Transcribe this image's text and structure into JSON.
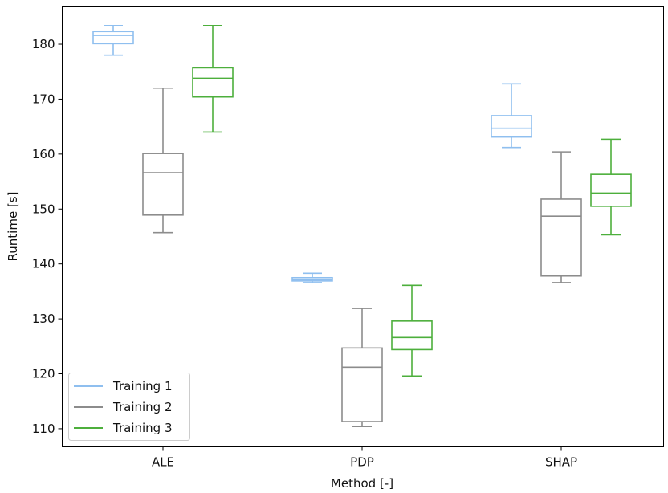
{
  "chart_data": {
    "type": "box",
    "xlabel": "Method [-]",
    "ylabel": "Runtime [s]",
    "categories": [
      "ALE",
      "PDP",
      "SHAP"
    ],
    "yticks": [
      110,
      120,
      130,
      140,
      150,
      160,
      170,
      180
    ],
    "ylim": [
      106.7,
      186.8
    ],
    "legend_position": "lower-left",
    "series": [
      {
        "name": "Training 1",
        "color": "#8fbfef",
        "boxes": [
          {
            "min": 178.0,
            "q1": 180.1,
            "median": 181.6,
            "q3": 182.3,
            "max": 183.4
          },
          {
            "min": 136.6,
            "q1": 136.9,
            "median": 137.1,
            "q3": 137.5,
            "max": 138.3
          },
          {
            "min": 161.2,
            "q1": 163.1,
            "median": 164.7,
            "q3": 167.0,
            "max": 172.8
          }
        ]
      },
      {
        "name": "Training 2",
        "color": "#8c8c8c",
        "boxes": [
          {
            "min": 145.7,
            "q1": 148.9,
            "median": 156.6,
            "q3": 160.1,
            "max": 172.0
          },
          {
            "min": 110.4,
            "q1": 111.3,
            "median": 121.2,
            "q3": 124.7,
            "max": 131.9
          },
          {
            "min": 136.6,
            "q1": 137.8,
            "median": 148.7,
            "q3": 151.8,
            "max": 160.4
          }
        ]
      },
      {
        "name": "Training 3",
        "color": "#4daf3c",
        "boxes": [
          {
            "min": 164.0,
            "q1": 170.4,
            "median": 173.8,
            "q3": 175.7,
            "max": 183.4
          },
          {
            "min": 119.6,
            "q1": 124.4,
            "median": 126.6,
            "q3": 129.6,
            "max": 136.1
          },
          {
            "min": 145.3,
            "q1": 150.5,
            "median": 152.9,
            "q3": 156.3,
            "max": 162.7
          }
        ]
      }
    ]
  }
}
